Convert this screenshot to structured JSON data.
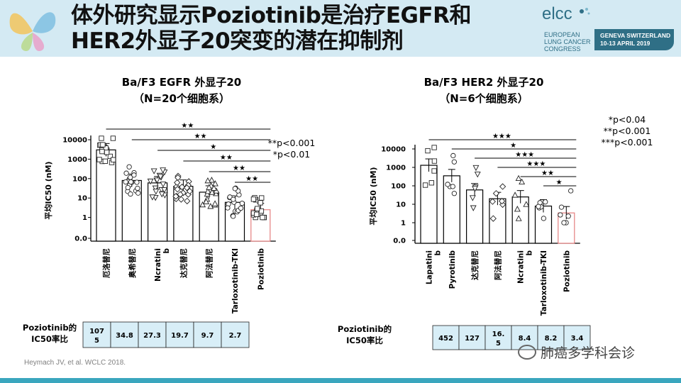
{
  "slide": {
    "title_line1": "体外研究显示Poziotinib是治疗EGFR和",
    "title_line2": "HER2外显子20突变的潜在抑制剂",
    "citation": "Heymach JV, et al. WCLC 2018.",
    "watermark": "肺癌多学科会诊",
    "watermark_icon": "wechat-icon"
  },
  "conference": {
    "brand": "elcc",
    "lines": [
      "EUROPEAN",
      "LUNG CANCER",
      "CONGRESS"
    ],
    "venue_line1": "GENEVA SWITZERLAND",
    "venue_line2": "10-13 APRIL 2019"
  },
  "chart_data": [
    {
      "type": "bar",
      "title_line1": "Ba/F3 EGFR 外显子20",
      "title_line2": "（N=20个细胞系）",
      "ylabel": "平均IC50 (nM)",
      "yscale": "log",
      "yticks": [
        "10000",
        "1000",
        "100",
        "10",
        "1",
        "0.0"
      ],
      "categories": [
        "厄洛替尼",
        "奥希替尼",
        "Ncratini b",
        "达克替尼",
        "阿法替尼",
        "Tarloxotinib-TKI",
        "Poziotinib"
      ],
      "values": [
        3000,
        80,
        60,
        40,
        20,
        6,
        2.5
      ],
      "marker_shapes": [
        "square",
        "circle",
        "triangle-down",
        "diamond",
        "triangle-up",
        "circle",
        "square"
      ],
      "significance_marks": [
        "★★",
        "★★",
        "★",
        "★★",
        "★★",
        "★★"
      ],
      "pvalue_notes": [
        "**p<0.001",
        "*p<0.01"
      ],
      "highlight_color": "#e57f7f",
      "table_label_line1": "Poziotinib的",
      "table_label_line2": "IC50率比",
      "ratio_values": [
        "107 5",
        "34.8",
        "27.3",
        "19.7",
        "9.7",
        "2.7"
      ]
    },
    {
      "type": "bar",
      "title_line1": "Ba/F3 HER2 外显子20",
      "title_line2": "（N=6个细胞系）",
      "ylabel": "平均IC50 (nM)",
      "yscale": "log",
      "yticks": [
        "10000",
        "1000",
        "100",
        "10",
        "1",
        "0.0"
      ],
      "categories": [
        "Lapatini b",
        "Pyrotinib",
        "达克替尼",
        "阿法替尼",
        "Ncratini b",
        "Tarloxotinib-TKI",
        "Poziotinib"
      ],
      "values": [
        1300,
        350,
        60,
        20,
        25,
        8,
        3.4
      ],
      "marker_shapes": [
        "square",
        "circle",
        "triangle-down",
        "diamond",
        "triangle-up",
        "circle",
        "circle"
      ],
      "significance_marks": [
        "★★★",
        "★",
        "★★★",
        "★★★",
        "★★",
        "★"
      ],
      "pvalue_notes": [
        "*p<0.04",
        "**p<0.001",
        "***p<0.001"
      ],
      "highlight_color": "#e57f7f",
      "table_label_line1": "Poziotinib的",
      "table_label_line2": "IC50率比",
      "ratio_values": [
        "452",
        "127",
        "16. 5",
        "8.4",
        "8.2",
        "3.4"
      ]
    }
  ]
}
